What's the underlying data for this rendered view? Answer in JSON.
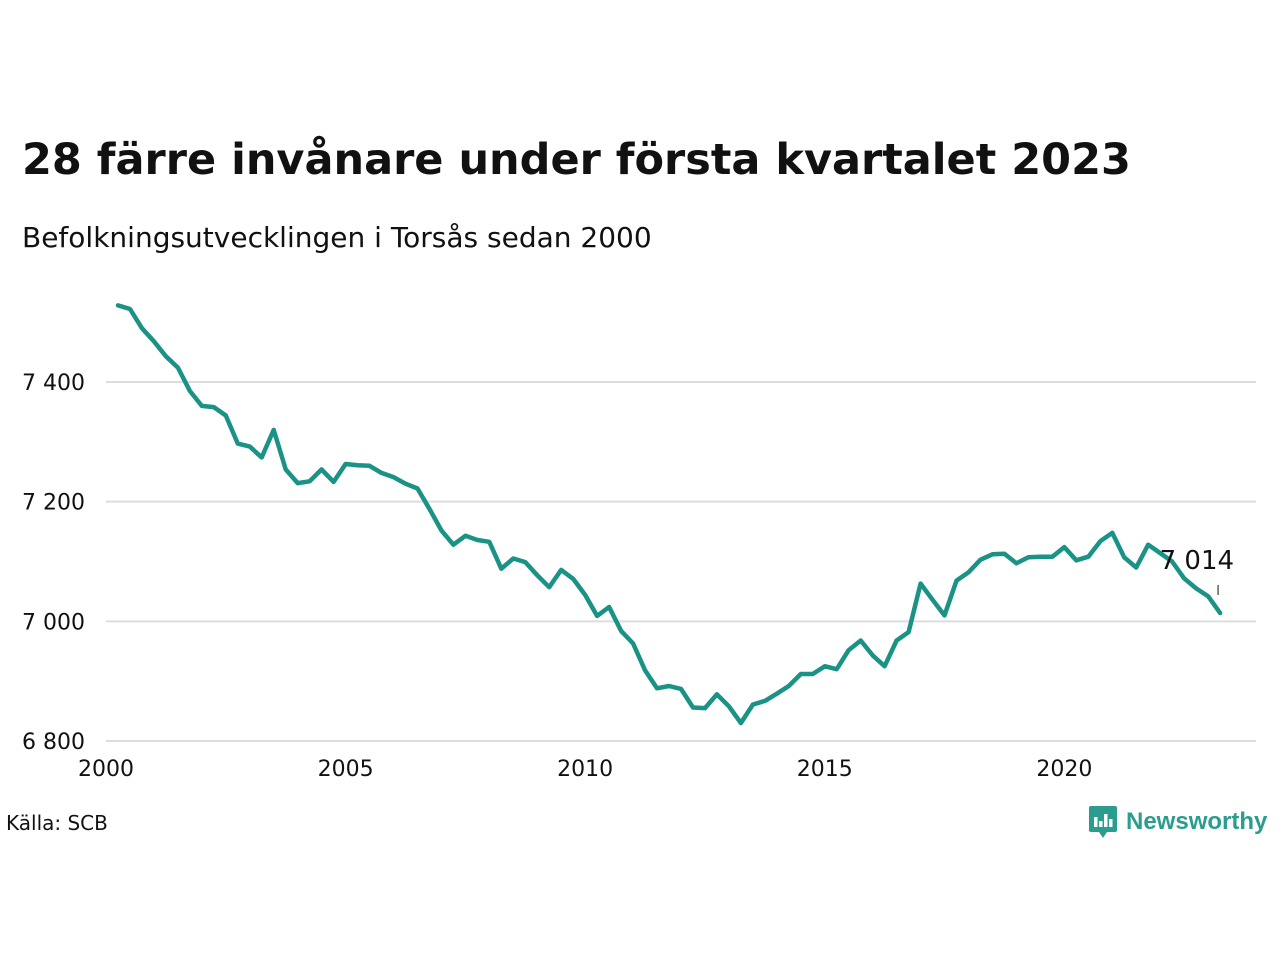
{
  "title": "28 färre invånare under första kvartalet 2023",
  "subtitle": "Befolkningsutvecklingen i Torsås sedan 2000",
  "source": "Källa: SCB",
  "brand": {
    "name": "Newsworthy",
    "icon": "newsworthy-logo-icon",
    "color": "#2a9d8f"
  },
  "colors": {
    "line": "#1a9285",
    "grid": "#dddddd",
    "text": "#111111"
  },
  "chart_data": {
    "type": "line",
    "title": "28 färre invånare under första kvartalet 2023",
    "subtitle": "Befolkningsutvecklingen i Torsås sedan 2000",
    "xlabel": "",
    "ylabel": "",
    "xlim": [
      2000,
      2024
    ],
    "ylim": [
      6800,
      7600
    ],
    "xticks": [
      2000,
      2005,
      2010,
      2015,
      2020
    ],
    "xtick_labels": [
      "2000",
      "2005",
      "2010",
      "2015",
      "2020"
    ],
    "yticks": [
      6800,
      7000,
      7200,
      7400
    ],
    "ytick_labels": [
      "6 800",
      "7 000",
      "7 200",
      "7 400"
    ],
    "grid": "horizontal",
    "series": [
      {
        "x": [
          2000.25,
          2000.5,
          2000.75,
          2001.0,
          2001.25,
          2001.5,
          2001.75,
          2002.0,
          2002.25,
          2002.5,
          2002.75,
          2003.0,
          2003.25,
          2003.5,
          2003.75,
          2004.0,
          2004.25,
          2004.5,
          2004.75,
          2005.0,
          2005.25,
          2005.5,
          2005.75,
          2006.0,
          2006.25,
          2006.5,
          2006.75,
          2007.0,
          2007.25,
          2007.5,
          2007.75,
          2008.0,
          2008.25,
          2008.5,
          2008.75,
          2009.0,
          2009.25,
          2009.5,
          2009.75,
          2010.0,
          2010.25,
          2010.5,
          2010.75,
          2011.0,
          2011.25,
          2011.5,
          2011.75,
          2012.0,
          2012.25,
          2012.5,
          2012.75,
          2013.0,
          2013.25,
          2013.5,
          2013.75,
          2014.0,
          2014.25,
          2014.5,
          2014.75,
          2015.0,
          2015.25,
          2015.5,
          2015.75,
          2016.0,
          2016.25,
          2016.5,
          2016.75,
          2017.0,
          2017.25,
          2017.5,
          2017.75,
          2018.0,
          2018.25,
          2018.5,
          2018.75,
          2019.0,
          2019.25,
          2019.5,
          2019.75,
          2020.0,
          2020.25,
          2020.5,
          2020.75,
          2021.0,
          2021.25,
          2021.5,
          2021.75,
          2022.0,
          2022.25,
          2022.5,
          2022.75,
          2023.0,
          2023.25
        ],
        "y": [
          7528,
          7522,
          7490,
          7468,
          7443,
          7424,
          7385,
          7360,
          7358,
          7344,
          7297,
          7292,
          7274,
          7320,
          7254,
          7231,
          7234,
          7254,
          7233,
          7263,
          7261,
          7260,
          7248,
          7241,
          7230,
          7222,
          7188,
          7152,
          7128,
          7143,
          7136,
          7133,
          7088,
          7105,
          7099,
          7077,
          7057,
          7086,
          7071,
          7044,
          7009,
          7024,
          6984,
          6963,
          6918,
          6888,
          6892,
          6887,
          6856,
          6855,
          6878,
          6858,
          6830,
          6861,
          6867,
          6879,
          6892,
          6912,
          6912,
          6925,
          6920,
          6952,
          6968,
          6943,
          6925,
          6968,
          6982,
          7063,
          7036,
          7010,
          7068,
          7082,
          7103,
          7112,
          7113,
          7097,
          7107,
          7108,
          7108,
          7124,
          7102,
          7108,
          7134,
          7148,
          7107,
          7090,
          7128,
          7114,
          7100,
          7072,
          7055,
          7042,
          7014
        ]
      }
    ],
    "annotations": [
      {
        "x": 2023.25,
        "y": 7014,
        "text": "7 014"
      }
    ]
  }
}
